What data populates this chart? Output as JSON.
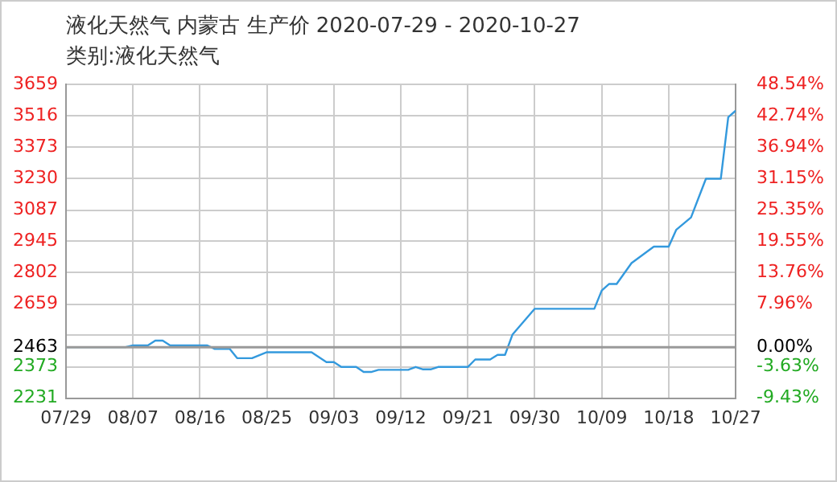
{
  "chart_data": {
    "type": "line",
    "title": "液化天然气 内蒙古 生产价 2020-07-29 - 2020-10-27",
    "subtitle": "类别:液化天然气",
    "x": [
      "--07-29",
      "--08-06",
      "--08-07",
      "--08-09",
      "--08-10",
      "--08-11",
      "--08-12",
      "--08-17",
      "--08-18",
      "--08-20",
      "--08-21",
      "--08-23",
      "--08-25",
      "--08-31",
      "--09-02",
      "--09-03",
      "--09-04",
      "--09-06",
      "--09-07",
      "--09-08",
      "--09-09",
      "--09-13",
      "--09-14",
      "--09-15",
      "--09-16",
      "--09-17",
      "--09-21",
      "--09-22",
      "--09-24",
      "--09-25",
      "--09-26",
      "--09-27",
      "--09-30",
      "--10-08",
      "--10-09",
      "--10-10",
      "--10-11",
      "--10-13",
      "--10-16",
      "--10-18",
      "--10-19",
      "--10-21",
      "--10-23",
      "--10-25",
      "--10-26",
      "--10-27"
    ],
    "series": [
      {
        "color": "#3399dd",
        "values": [
          2463,
          2463,
          2471,
          2471,
          2493,
          2493,
          2471,
          2471,
          2455,
          2455,
          2413,
          2413,
          2440,
          2440,
          2395,
          2395,
          2373,
          2373,
          2350,
          2350,
          2360,
          2360,
          2373,
          2362,
          2362,
          2373,
          2373,
          2407,
          2407,
          2428,
          2428,
          2520,
          2638,
          2638,
          2721,
          2751,
          2751,
          2846,
          2921,
          2921,
          2997,
          3054,
          3230,
          3230,
          3510,
          3540
        ]
      }
    ],
    "xlim": [
      "--07-29",
      "--10-27"
    ],
    "xticks": [
      {
        "value": "--07-29",
        "label": "07/29"
      },
      {
        "value": "--08-07",
        "label": "08/07"
      },
      {
        "value": "--08-16",
        "label": "08/16"
      },
      {
        "value": "--08-25",
        "label": "08/25"
      },
      {
        "value": "--09-03",
        "label": "09/03"
      },
      {
        "value": "--09-12",
        "label": "09/12"
      },
      {
        "value": "--09-21",
        "label": "09/21"
      },
      {
        "value": "--09-30",
        "label": "09/30"
      },
      {
        "value": "--10-09",
        "label": "10/09"
      },
      {
        "value": "--10-18",
        "label": "10/18"
      },
      {
        "value": "--10-27",
        "label": "10/27"
      }
    ],
    "ylim": [
      2231,
      3659
    ],
    "yticks": [
      2231,
      2373,
      2463,
      {
        "value": 2517,
        "label": null
      },
      2659,
      2802,
      2945,
      3087,
      3230,
      3373,
      3516,
      3659
    ],
    "y2lim": [
      -9.43,
      48.54
    ],
    "y2ticks": [
      {
        "value": -9.43,
        "label": "-9.43%"
      },
      {
        "value": -3.63,
        "label": "-3.63%"
      },
      {
        "value": 0,
        "label": "0.00%"
      },
      {
        "value": 7.96,
        "label": "7.96%"
      },
      {
        "value": 13.76,
        "label": "13.76%"
      },
      {
        "value": 19.55,
        "label": "19.55%"
      },
      {
        "value": 25.35,
        "label": "25.35%"
      },
      {
        "value": 31.15,
        "label": "31.15%"
      },
      {
        "value": 36.94,
        "label": "36.94%"
      },
      {
        "value": 42.74,
        "label": "42.74%"
      },
      {
        "value": 48.54,
        "label": "48.54%"
      }
    ],
    "ref_lines": [
      {
        "axis": "y",
        "value": 2463,
        "color": "#999999"
      }
    ],
    "grid": true,
    "legend": false,
    "marker": "none",
    "line_style": "solid"
  }
}
